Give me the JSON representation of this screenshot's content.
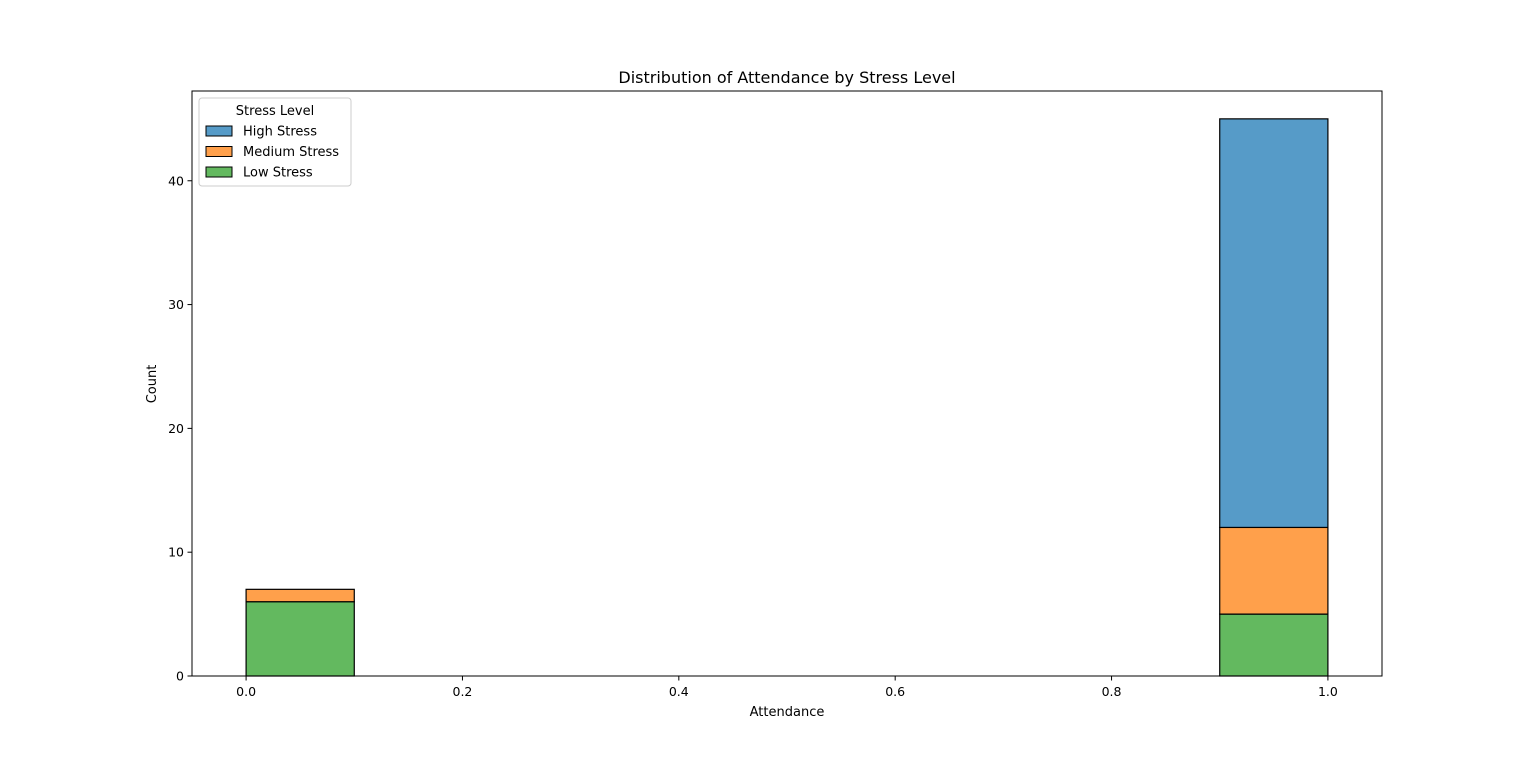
{
  "chart_data": {
    "type": "bar",
    "stacked": true,
    "title": "Distribution of Attendance by Stress Level",
    "xlabel": "Attendance",
    "ylabel": "Count",
    "xlim": [
      -0.05,
      1.05
    ],
    "ylim": [
      0,
      47.25
    ],
    "xticks": [
      0.0,
      0.2,
      0.4,
      0.6,
      0.8,
      1.0
    ],
    "xtick_labels": [
      "0.0",
      "0.2",
      "0.4",
      "0.6",
      "0.8",
      "1.0"
    ],
    "yticks": [
      0,
      10,
      20,
      30,
      40
    ],
    "ytick_labels": [
      "0",
      "10",
      "20",
      "30",
      "40"
    ],
    "bin_edges": [
      0.0,
      0.1,
      0.2,
      0.3,
      0.4,
      0.5,
      0.6,
      0.7,
      0.8,
      0.9,
      1.0
    ],
    "series": [
      {
        "name": "Low Stress",
        "color": "#63b95f",
        "values": [
          6,
          0,
          0,
          0,
          0,
          0,
          0,
          0,
          0,
          5
        ]
      },
      {
        "name": "Medium Stress",
        "color": "#ffa04b",
        "values": [
          1,
          0,
          0,
          0,
          0,
          0,
          0,
          0,
          0,
          7
        ]
      },
      {
        "name": "High Stress",
        "color": "#569bc8",
        "values": [
          0,
          0,
          0,
          0,
          0,
          0,
          0,
          0,
          0,
          33
        ]
      }
    ],
    "legend": {
      "title": "Stress Level",
      "placement": "top-left",
      "entries": [
        {
          "name": "High Stress",
          "color": "#569bc8"
        },
        {
          "name": "Medium Stress",
          "color": "#ffa04b"
        },
        {
          "name": "Low Stress",
          "color": "#63b95f"
        }
      ]
    },
    "grid": false
  }
}
